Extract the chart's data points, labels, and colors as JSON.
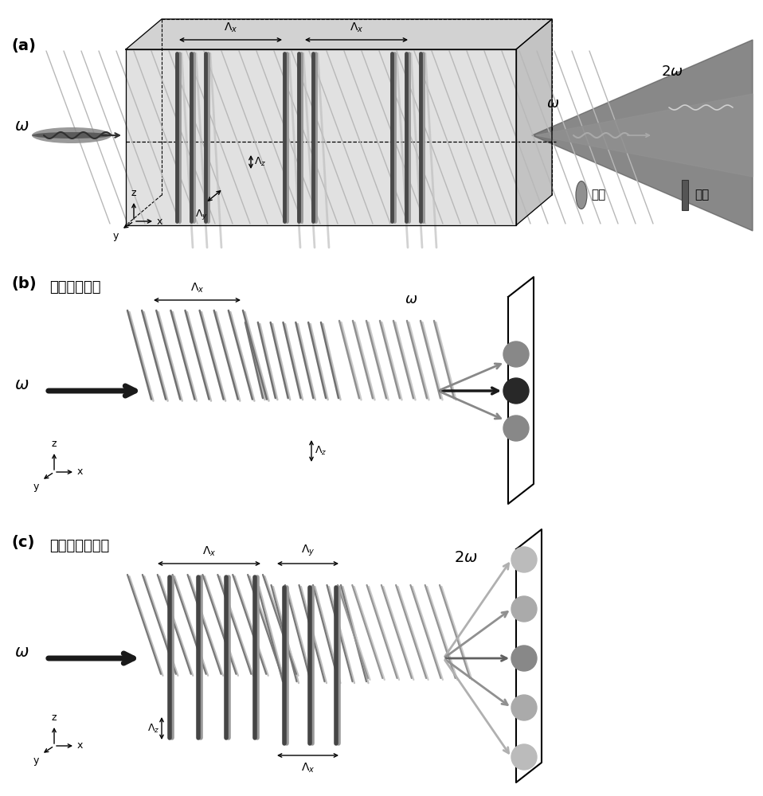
{
  "colors": {
    "dark_gray": "#404040",
    "medium_gray": "#808080",
    "light_gray": "#b0b0b0",
    "very_light_gray": "#d8d8d8",
    "black": "#000000",
    "white": "#ffffff",
    "box_front": "#e8e8e8",
    "box_top": "#d0d0d0",
    "box_right": "#c0c0c0",
    "grating_dark": "#505050",
    "grating_shadow": "#a0a0a0",
    "cone_outer": "#555555",
    "cone_inner": "#888888",
    "dot_dark": "#404040",
    "dot_med": "#808080",
    "dot_light": "#aaaaaa"
  },
  "panel_a_label": "(a)",
  "panel_b_label": "(b)",
  "panel_c_label": "(c)",
  "linear_diffraction": "一维线性衍射",
  "nonlinear_diffraction": "二维非线性衍射",
  "erase_label": "擦除",
  "polarize_label": "极化",
  "omega": "ω",
  "two_omega": "2ω"
}
